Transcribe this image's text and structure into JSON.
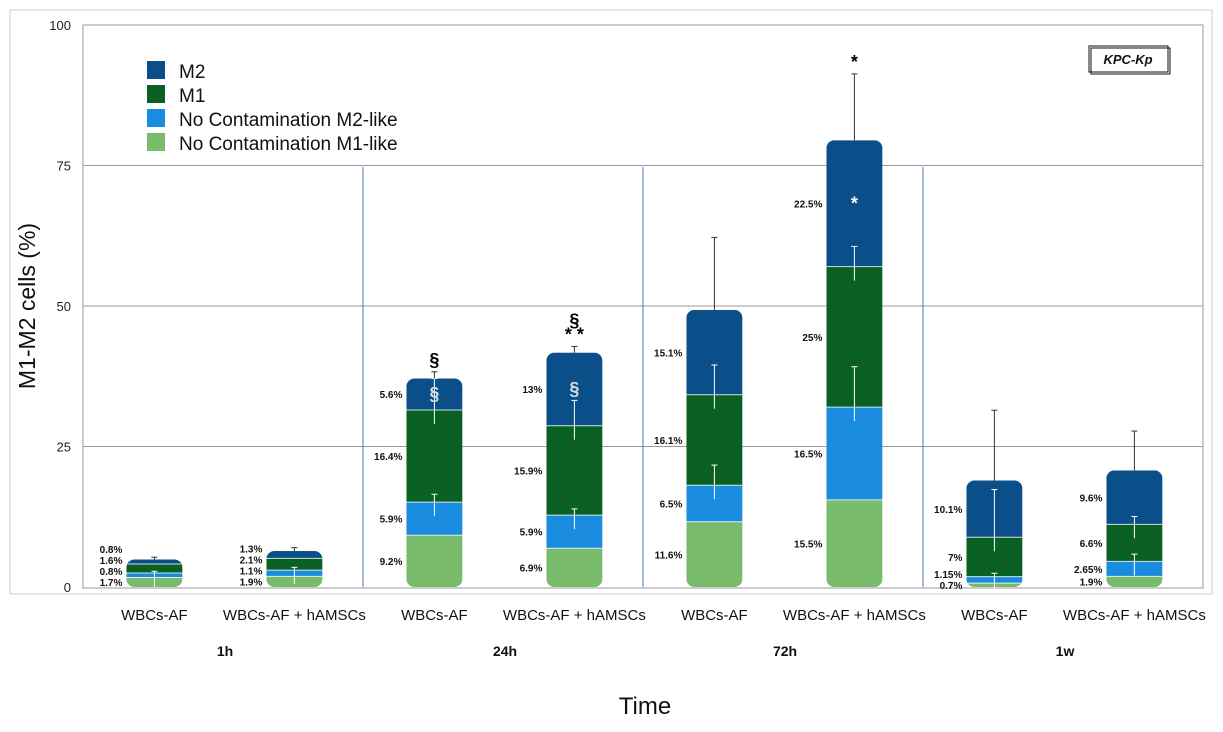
{
  "chart_data": {
    "type": "bar",
    "stacked": true,
    "ylabel": "M1-M2 cells (%)",
    "xlabel": "Time",
    "ylim": [
      0,
      100
    ],
    "yticks": [
      "0",
      "25",
      "50",
      "75",
      "100"
    ],
    "annotation": "KPC-Kp",
    "groups": [
      "1h",
      "24h",
      "72h",
      "1w"
    ],
    "legend": [
      {
        "key": "m2",
        "label": "M2",
        "color": "#0b4f8a"
      },
      {
        "key": "m1",
        "label": "M1",
        "color": "#0a5f22"
      },
      {
        "key": "nm2",
        "label": "No Contamination M2-like",
        "color": "#1a8ce0"
      },
      {
        "key": "nm1",
        "label": "No Contamination M1-like",
        "color": "#78bb6a"
      }
    ],
    "bars": [
      {
        "category": "WBCs-AF",
        "group": "1h",
        "values": {
          "nm1": 1.7,
          "nm2": 0.8,
          "m1": 1.6,
          "m2": 0.8
        },
        "labels": {
          "nm1": "1.7%",
          "nm2": "0.8%",
          "m1": "1.6%",
          "m2": "0.8%"
        },
        "errors": {
          "nm1": 0,
          "nm2": 0.3,
          "m1": 0,
          "m2": 0.4
        },
        "marks": []
      },
      {
        "category": "WBCs-AF + hAMSCs",
        "group": "1h",
        "values": {
          "nm1": 1.9,
          "nm2": 1.1,
          "m1": 2.1,
          "m2": 1.3
        },
        "labels": {
          "nm1": "1.9%",
          "nm2": "1.1%",
          "m1": "2.1%",
          "m2": "1.3%"
        },
        "errors": {
          "nm1": 0,
          "nm2": 0.5,
          "m1": 0,
          "m2": 0.6
        },
        "marks": []
      },
      {
        "category": "WBCs-AF",
        "group": "24h",
        "values": {
          "nm1": 9.2,
          "nm2": 5.9,
          "m1": 16.4,
          "m2": 5.6
        },
        "labels": {
          "nm1": "9.2%",
          "nm2": "5.9%",
          "m1": "16.4%",
          "m2": "5.6%"
        },
        "errors": {
          "nm1": 0,
          "nm2": 1.4,
          "m1": 5.6,
          "m2": 1.2
        },
        "marks": [
          {
            "seg": "m2",
            "text": "§",
            "color": "#dddddd"
          },
          {
            "seg": "top",
            "text": "§",
            "color": "#000000"
          }
        ]
      },
      {
        "category": "WBCs-AF + hAMSCs",
        "group": "24h",
        "values": {
          "nm1": 6.9,
          "nm2": 5.9,
          "m1": 15.9,
          "m2": 13.0
        },
        "labels": {
          "nm1": "6.9%",
          "nm2": "5.9%",
          "m1": "15.9%",
          "m2": "13%"
        },
        "errors": {
          "nm1": 0,
          "nm2": 1.1,
          "m1": 4.5,
          "m2": 1.1
        },
        "marks": [
          {
            "seg": "m2",
            "text": "§",
            "color": "#dddddd"
          },
          {
            "seg": "top",
            "text": "* *",
            "color": "#000000"
          },
          {
            "seg": "top2",
            "text": "§",
            "color": "#000000"
          }
        ]
      },
      {
        "category": "WBCs-AF",
        "group": "72h",
        "values": {
          "nm1": 11.6,
          "nm2": 6.5,
          "m1": 16.1,
          "m2": 15.1
        },
        "labels": {
          "nm1": "11.6%",
          "nm2": "6.5%",
          "m1": "16.1%",
          "m2": "15.1%"
        },
        "errors": {
          "nm1": 0,
          "nm2": 3.6,
          "m1": 5.3,
          "m2": 12.9
        },
        "marks": []
      },
      {
        "category": "WBCs-AF + hAMSCs",
        "group": "72h",
        "values": {
          "nm1": 15.5,
          "nm2": 16.5,
          "m1": 25.0,
          "m2": 22.5
        },
        "labels": {
          "nm1": "15.5%",
          "nm2": "16.5%",
          "m1": "25%",
          "m2": "22.5%"
        },
        "errors": {
          "nm1": 0,
          "nm2": 7.2,
          "m1": 3.6,
          "m2": 11.8
        },
        "marks": [
          {
            "seg": "m2",
            "text": "*",
            "color": "#ffffff"
          },
          {
            "seg": "top",
            "text": "*",
            "color": "#000000"
          }
        ]
      },
      {
        "category": "WBCs-AF",
        "group": "1w",
        "values": {
          "nm1": 0.7,
          "nm2": 1.15,
          "m1": 7.0,
          "m2": 10.1
        },
        "labels": {
          "nm1": "0.7%",
          "nm2": "1.15%",
          "m1": "7%",
          "m2": "10.1%"
        },
        "errors": {
          "nm1": 0,
          "nm2": 0.6,
          "m1": 8.5,
          "m2": 12.5
        },
        "marks": []
      },
      {
        "category": "WBCs-AF + hAMSCs",
        "group": "1w",
        "values": {
          "nm1": 1.9,
          "nm2": 2.65,
          "m1": 6.6,
          "m2": 9.6
        },
        "labels": {
          "nm1": "1.9%",
          "nm2": "2.65%",
          "m1": "6.6%",
          "m2": "9.6%"
        },
        "errors": {
          "nm1": 0,
          "nm2": 1.3,
          "m1": 1.4,
          "m2": 7.0
        },
        "marks": []
      }
    ]
  }
}
